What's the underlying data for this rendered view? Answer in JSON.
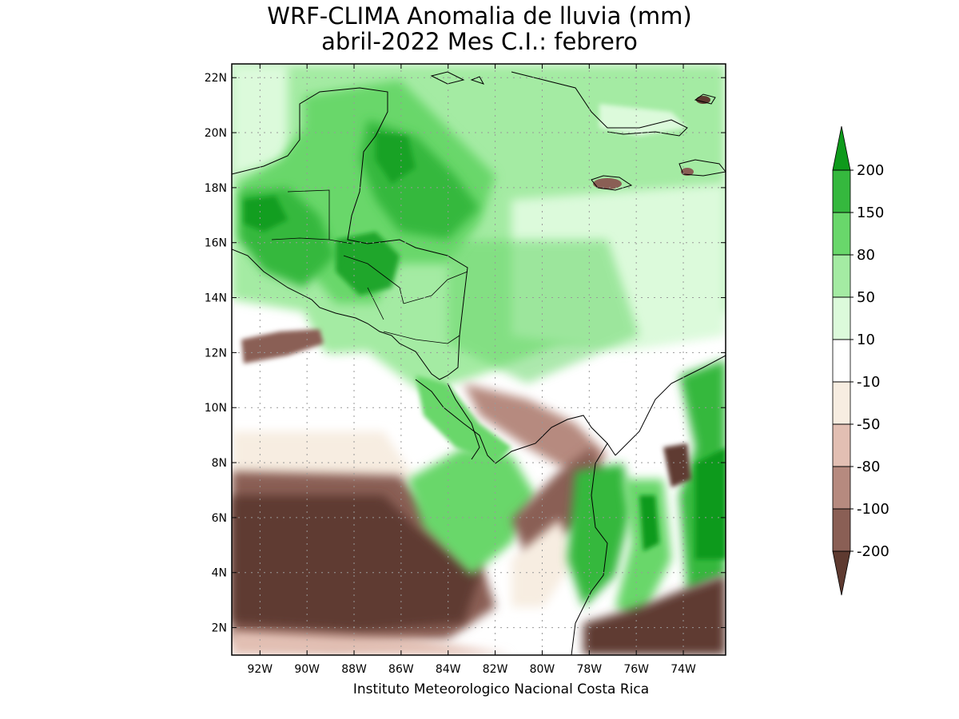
{
  "title": {
    "line1": "WRF-CLIMA Anomalia de lluvia (mm)",
    "line2": "abril-2022 Mes C.I.: febrero"
  },
  "axes": {
    "lat_labels": [
      "22N",
      "20N",
      "18N",
      "16N",
      "14N",
      "12N",
      "10N",
      "8N",
      "6N",
      "4N",
      "2N"
    ],
    "lon_labels": [
      "92W",
      "90W",
      "88W",
      "86W",
      "84W",
      "82W",
      "80W",
      "78W",
      "76W",
      "74W"
    ],
    "lat_range_deg": [
      1,
      22.5
    ],
    "lon_range_deg": [
      -93.2,
      -72.2
    ]
  },
  "credit": "Instituto Meteorologico Nacional Costa Rica",
  "legend": {
    "units": "mm",
    "labels": [
      "200",
      "150",
      "80",
      "50",
      "10",
      "-10",
      "-50",
      "-80",
      "-100",
      "-200"
    ],
    "colors": [
      "#0e9a1b",
      "#35b83e",
      "#69d76b",
      "#a4eba3",
      "#dcfadb",
      "#ffffff",
      "#f7ede1",
      "#e2bfb3",
      "#b68a7f",
      "#8a5f55",
      "#5e3a30"
    ]
  },
  "icons": {
    "colorbar_top_arrow": "triangle-up-icon",
    "colorbar_bottom_arrow": "triangle-down-icon"
  }
}
